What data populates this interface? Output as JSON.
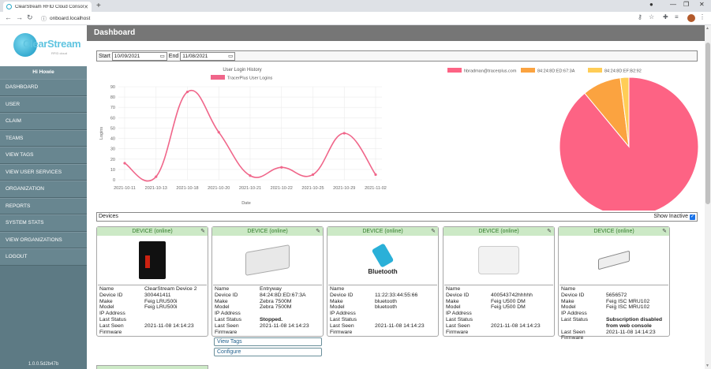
{
  "browser": {
    "tab_title": "ClearStream RFID Cloud Console",
    "url": "onboard.localhost"
  },
  "logo": {
    "brand": "ClearStream",
    "sub": "RFID cloud"
  },
  "sidebar": {
    "greeting": "Hi Howie",
    "items": [
      {
        "label": "Dashboard"
      },
      {
        "label": "User"
      },
      {
        "label": "Claim"
      },
      {
        "label": "Teams"
      },
      {
        "label": "View Tags"
      },
      {
        "label": "View User Services"
      },
      {
        "label": "Organization"
      },
      {
        "label": "Reports"
      },
      {
        "label": "System Stats"
      },
      {
        "label": "View Organizations"
      },
      {
        "label": "Logout"
      }
    ],
    "version": "1.0.0.5d2b47b"
  },
  "page": {
    "title": "Dashboard",
    "start_label": "Start",
    "start_value": "10/09/2021",
    "end_label": "End",
    "end_value": "11/08/2021",
    "devices_label": "Devices",
    "show_inactive_label": "Show Inactive"
  },
  "chart_data": [
    {
      "type": "line",
      "title": "User Login History",
      "xlabel": "Date",
      "ylabel": "Logins",
      "ylim": [
        0,
        90
      ],
      "yticks": [
        "0",
        "10",
        "20",
        "30",
        "40",
        "50",
        "60",
        "70",
        "80",
        "90"
      ],
      "categories": [
        "2021-10-11",
        "2021-10-13",
        "2021-10-18",
        "2021-10-20",
        "2021-10-21",
        "2021-10-22",
        "2021-10-25",
        "2021-10-29",
        "2021-11-02"
      ],
      "series": [
        {
          "name": "TracerPlus User Logins",
          "color": "#f0668a",
          "values": [
            16,
            3,
            85,
            46,
            4,
            12,
            5,
            45,
            5
          ]
        }
      ]
    },
    {
      "type": "pie",
      "legend": [
        "hbradman@tracerplus.com",
        "84:24:8D:ED:67:3A",
        "84:24:8D:EF:B2:92"
      ],
      "colors": [
        "#fd6384",
        "#fba340",
        "#ffcd56"
      ],
      "values": [
        89,
        9,
        2
      ]
    }
  ],
  "devices": [
    {
      "header": "DEVICE (online)",
      "image": "reader-black",
      "rows": [
        {
          "k": "Name",
          "v": "ClearStream Device 2"
        },
        {
          "k": "Device ID",
          "v": "300441411"
        },
        {
          "k": "Make",
          "v": "Feig LRU500i"
        },
        {
          "k": "Model",
          "v": "Feig LRU500i"
        },
        {
          "k": "IP Address",
          "v": ""
        },
        {
          "k": "Last Status",
          "v": ""
        },
        {
          "k": "Last Seen",
          "v": "2021-11-08 14:14:23"
        },
        {
          "k": "Firmware",
          "v": ""
        }
      ]
    },
    {
      "header": "DEVICE (online)",
      "image": "reader-zebra",
      "rows": [
        {
          "k": "Name",
          "v": "Entryway"
        },
        {
          "k": "Device ID",
          "v": "84:24:8D:ED:67:3A"
        },
        {
          "k": "Make",
          "v": "Zebra 7500M"
        },
        {
          "k": "Model",
          "v": "Zebra 7500M"
        },
        {
          "k": "IP Address",
          "v": ""
        },
        {
          "k": "Last Status",
          "v": "Stopped.",
          "bold": true
        },
        {
          "k": "Last Seen",
          "v": "2021-11-08 14:14:23"
        },
        {
          "k": "Firmware",
          "v": ""
        }
      ],
      "actions": [
        "View Tags",
        "Configure"
      ]
    },
    {
      "header": "DEVICE (online)",
      "image": "bluetooth",
      "image_text": "Bluetooth",
      "rows": [
        {
          "k": "Name",
          "v": ""
        },
        {
          "k": "Device ID",
          "v": "11:22:33:44:55:66"
        },
        {
          "k": "Make",
          "v": "bluetooth"
        },
        {
          "k": "Model",
          "v": "bluetooth"
        },
        {
          "k": "IP Address",
          "v": ""
        },
        {
          "k": "Last Status",
          "v": ""
        },
        {
          "k": "Last Seen",
          "v": "2021-11-08 14:14:23"
        },
        {
          "k": "Firmware",
          "v": ""
        }
      ]
    },
    {
      "header": "DEVICE (online)",
      "image": "reader-white",
      "rows": [
        {
          "k": "Name",
          "v": ""
        },
        {
          "k": "Device ID",
          "v": "400543742hhhhh"
        },
        {
          "k": "Make",
          "v": "Feig U500 DM"
        },
        {
          "k": "Model",
          "v": "Feig U500 DM"
        },
        {
          "k": "IP Address",
          "v": ""
        },
        {
          "k": "Last Status",
          "v": ""
        },
        {
          "k": "Last Seen",
          "v": "2021-11-08 14:14:23"
        },
        {
          "k": "Firmware",
          "v": ""
        }
      ]
    },
    {
      "header": "DEVICE (online)",
      "image": "reader-small",
      "rows": [
        {
          "k": "Name",
          "v": ""
        },
        {
          "k": "Device ID",
          "v": "5656572"
        },
        {
          "k": "Make",
          "v": "Feig ISC MRU102"
        },
        {
          "k": "Model",
          "v": "Feig ISC MRU102"
        },
        {
          "k": "IP Address",
          "v": ""
        },
        {
          "k": "Last Status",
          "v": "Subscription disabled from web console",
          "bold": true
        },
        {
          "k": "Last Seen",
          "v": "2021-11-08 14:14:23"
        },
        {
          "k": "Firmware",
          "v": ""
        }
      ]
    }
  ]
}
